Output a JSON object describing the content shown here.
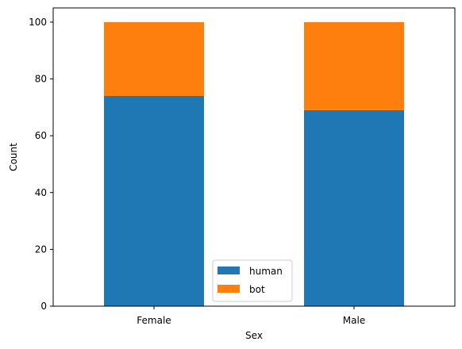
{
  "chart_data": {
    "type": "bar",
    "stacked": true,
    "categories": [
      "Female",
      "Male"
    ],
    "series": [
      {
        "name": "human",
        "values": [
          74,
          69
        ],
        "color": "#1f77b4"
      },
      {
        "name": "bot",
        "values": [
          26,
          31
        ],
        "color": "#ff7f0e"
      }
    ],
    "xlabel": "Sex",
    "ylabel": "Count",
    "ylim": [
      0,
      105
    ],
    "yticks": [
      0,
      20,
      40,
      60,
      80,
      100
    ],
    "grid": false,
    "legend_position": "bottom-center"
  }
}
